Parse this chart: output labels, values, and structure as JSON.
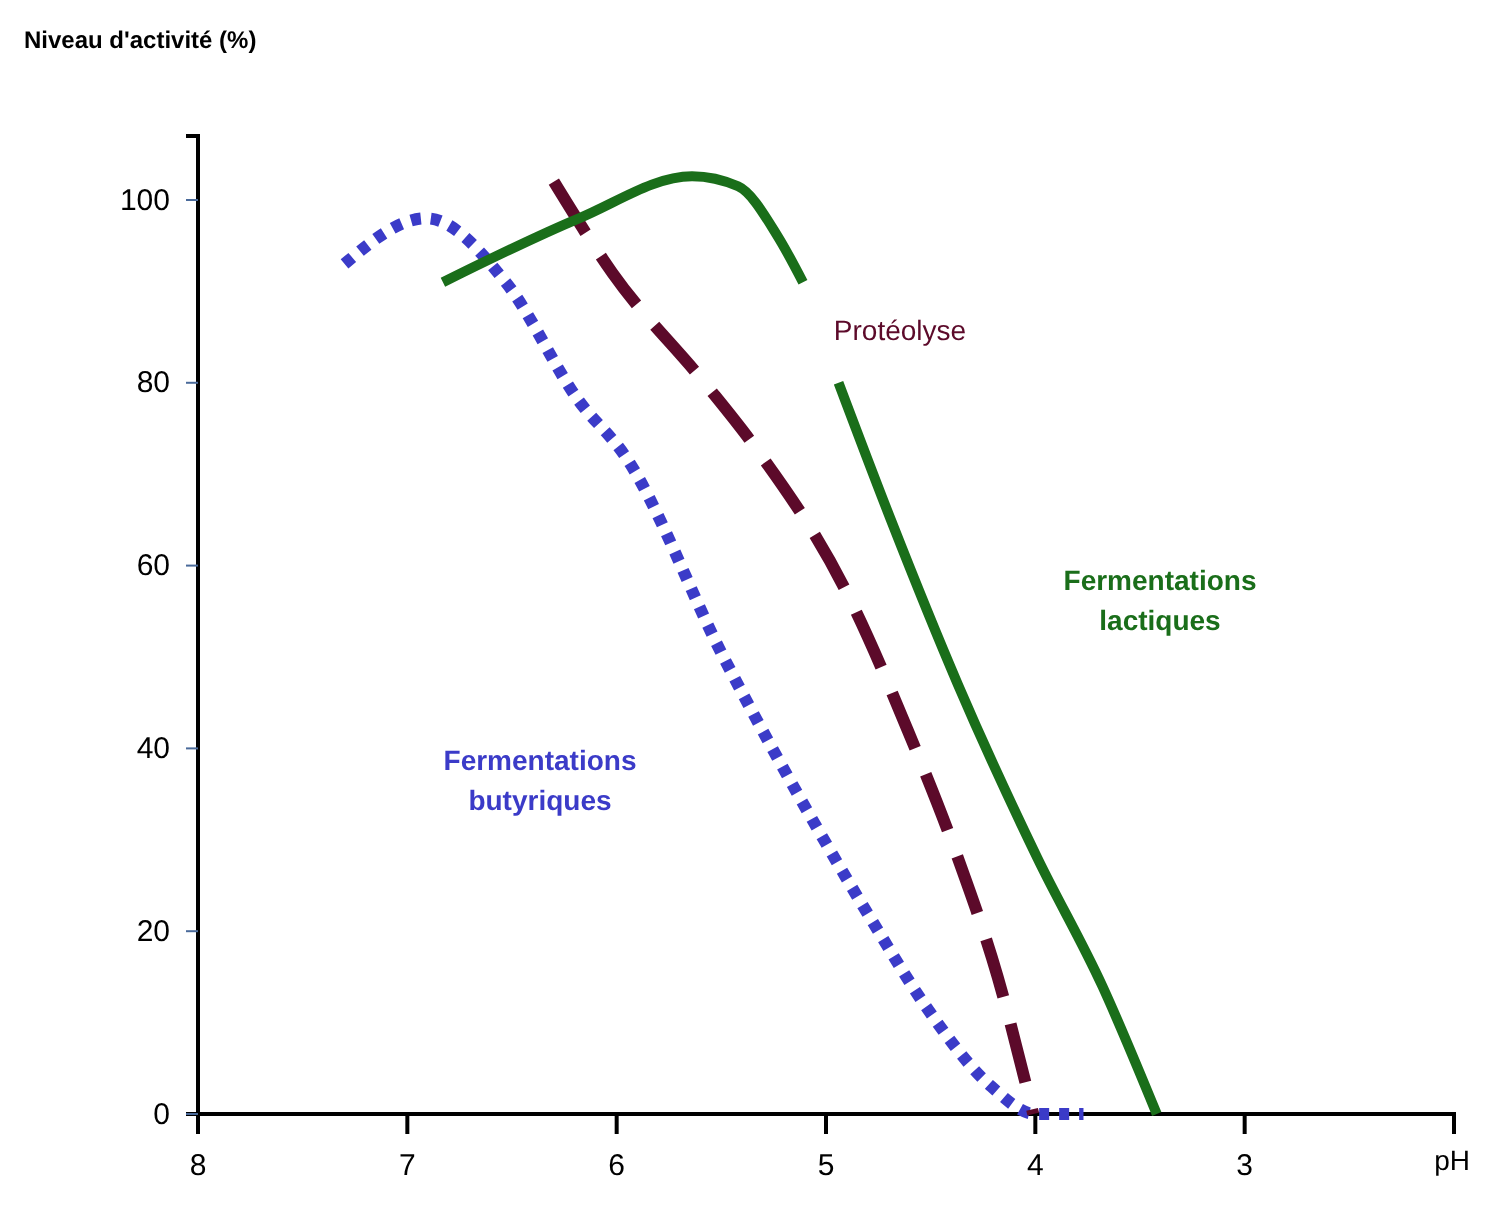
{
  "chart_data": {
    "type": "line",
    "xlabel": "pH",
    "ylabel": "Niveau d'activité (%)",
    "xlim": [
      8,
      2
    ],
    "ylim": [
      0,
      107
    ],
    "xticks": [
      8,
      7,
      6,
      5,
      4,
      3
    ],
    "yticks": [
      0,
      20,
      40,
      60,
      80,
      100
    ],
    "grid": false,
    "legend": false,
    "marker": "none",
    "series": [
      {
        "name": "Fermentations butyriques",
        "color": "#3b3bc8",
        "line_style": "dotted",
        "x": [
          7.3,
          6.91,
          6.53,
          6.18,
          5.96,
          5.49,
          5.01,
          4.75,
          4.53,
          4.21,
          4.0,
          3.77
        ],
        "values": [
          93,
          98,
          91,
          78,
          72,
          50,
          30,
          20,
          12,
          3,
          0,
          0
        ]
      },
      {
        "name": "Protéolyse",
        "color": "#5c0a2a",
        "line_style": "dashed",
        "x": [
          6.3,
          6.02,
          5.58,
          5.34,
          4.9,
          4.61,
          4.37,
          4.18,
          4.01
        ],
        "values": [
          102,
          92,
          80,
          73,
          57,
          42,
          28,
          15,
          0
        ]
      },
      {
        "name": "Fermentations lactiques",
        "color": "#1a6e1a",
        "line_style": "solid",
        "x": [
          6.83,
          6.18,
          5.64,
          5.42,
          5.23,
          5.11,
          5.03,
          4.94,
          4.69,
          4.37,
          3.99,
          3.68,
          3.42
        ],
        "values": [
          91,
          98,
          102.6,
          101.5,
          96,
          91,
          null,
          80,
          65,
          47,
          28,
          14,
          0
        ]
      }
    ]
  }
}
